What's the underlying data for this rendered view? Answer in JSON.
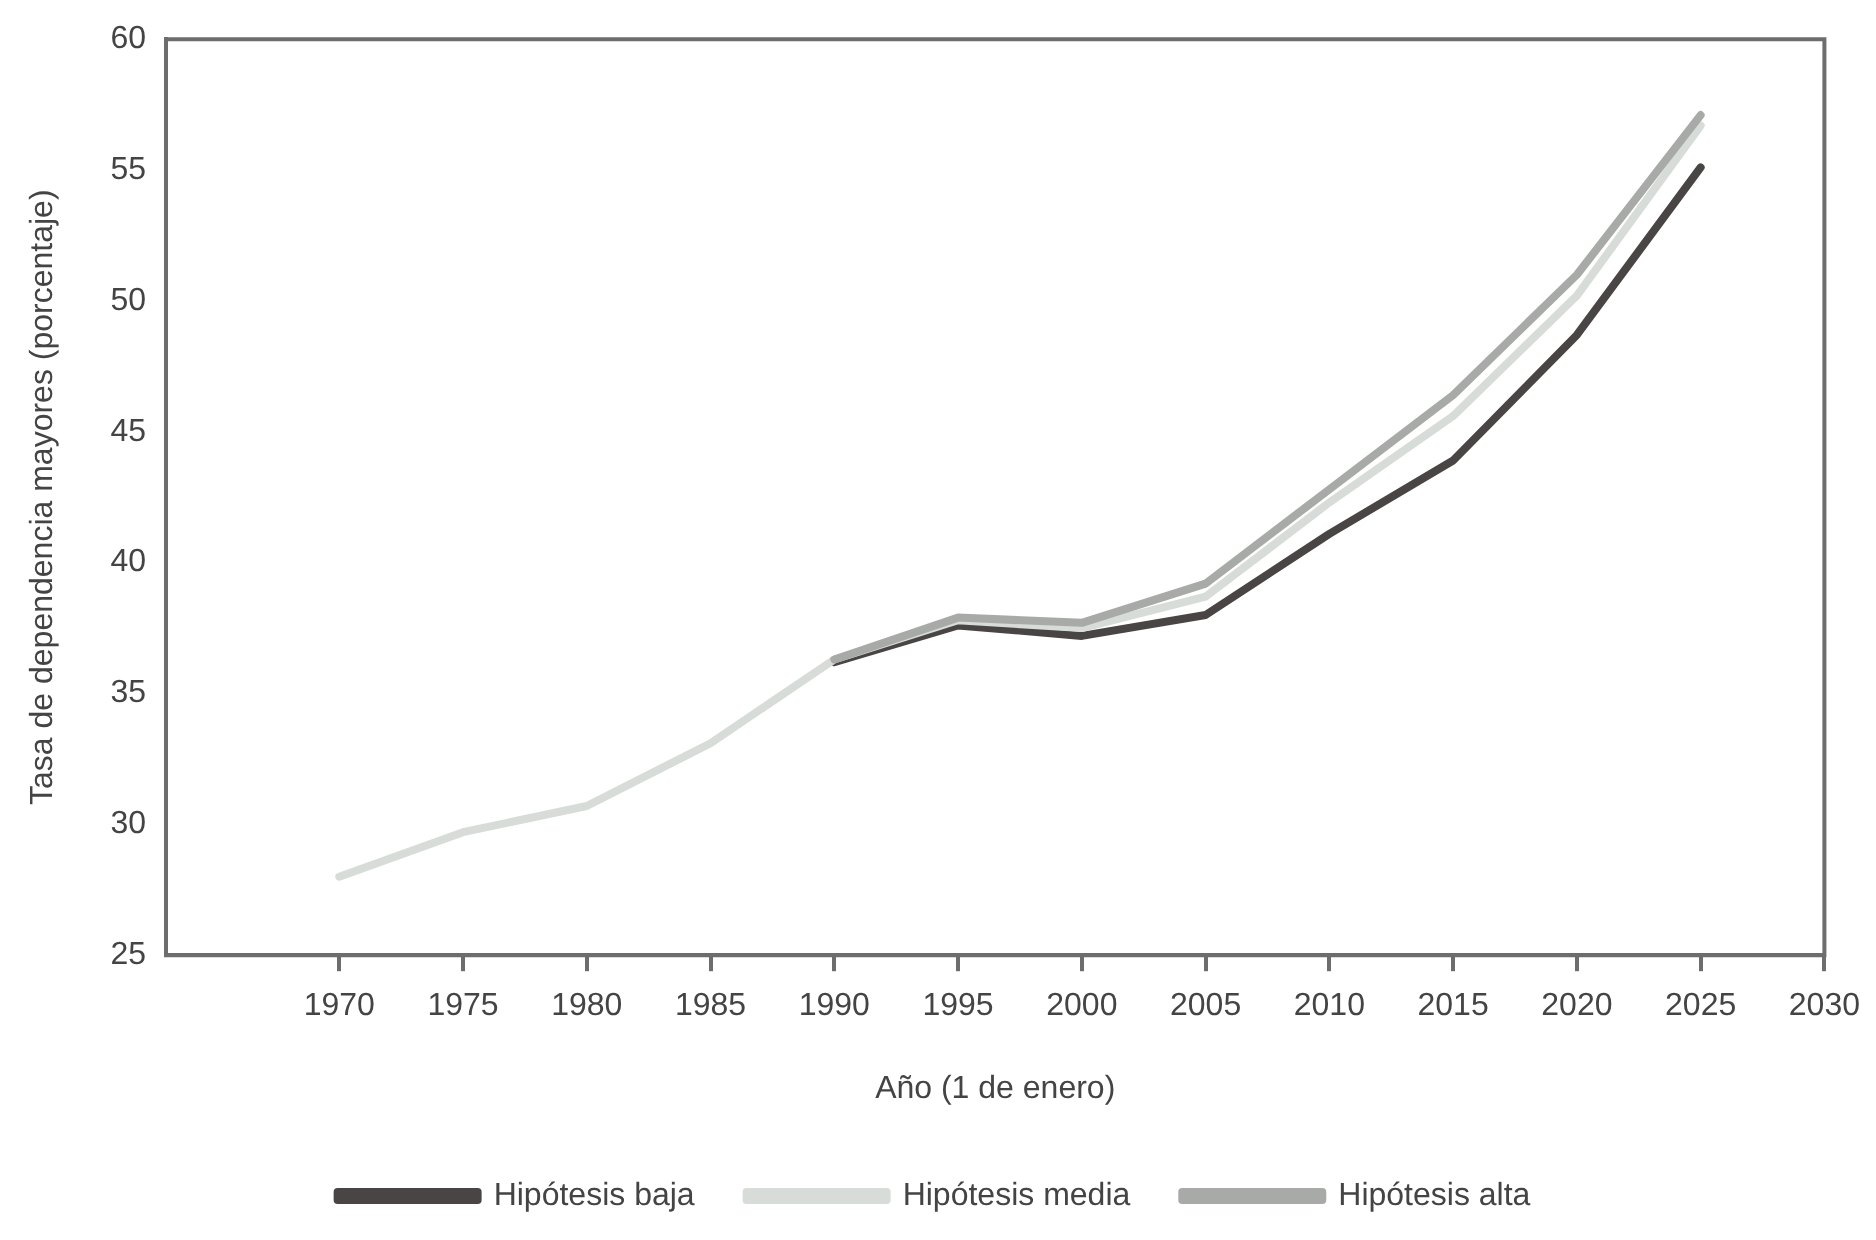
{
  "chart_data": {
    "type": "line",
    "xlabel": "Año (1 de enero)",
    "ylabel": "Tasa de dependencia mayores (porcentaje)",
    "xlim": [
      1963,
      2030
    ],
    "ylim": [
      25,
      60
    ],
    "xticks": [
      1970,
      1975,
      1980,
      1985,
      1990,
      1995,
      2000,
      2005,
      2010,
      2015,
      2020,
      2025,
      2030
    ],
    "yticks": [
      25,
      30,
      35,
      40,
      45,
      50,
      55,
      60
    ],
    "grid": false,
    "legend": "bottom",
    "marker": "none",
    "line_style": "solid",
    "series": [
      {
        "name": "Hipótesis baja",
        "color": "#4a4545",
        "x": [
          1990,
          1995,
          2000,
          2005,
          2010,
          2015,
          2020,
          2025
        ],
        "values": [
          36.2,
          37.6,
          37.2,
          38.0,
          41.1,
          43.9,
          48.7,
          55.1
        ]
      },
      {
        "name": "Hipótesis media",
        "color": "#d8dcd8",
        "x": [
          1970,
          1975,
          1980,
          1985,
          1990,
          1995,
          2000,
          2005,
          2010,
          2015,
          2020,
          2025
        ],
        "values": [
          28.0,
          29.7,
          30.7,
          33.1,
          36.3,
          37.8,
          37.5,
          38.7,
          42.3,
          45.6,
          50.2,
          56.7
        ]
      },
      {
        "name": "Hipótesis alta",
        "color": "#a8aaa8",
        "x": [
          1990,
          1995,
          2000,
          2005,
          2010,
          2015,
          2020,
          2025
        ],
        "values": [
          36.3,
          37.9,
          37.7,
          39.2,
          42.8,
          46.4,
          51.0,
          57.1
        ]
      }
    ]
  }
}
